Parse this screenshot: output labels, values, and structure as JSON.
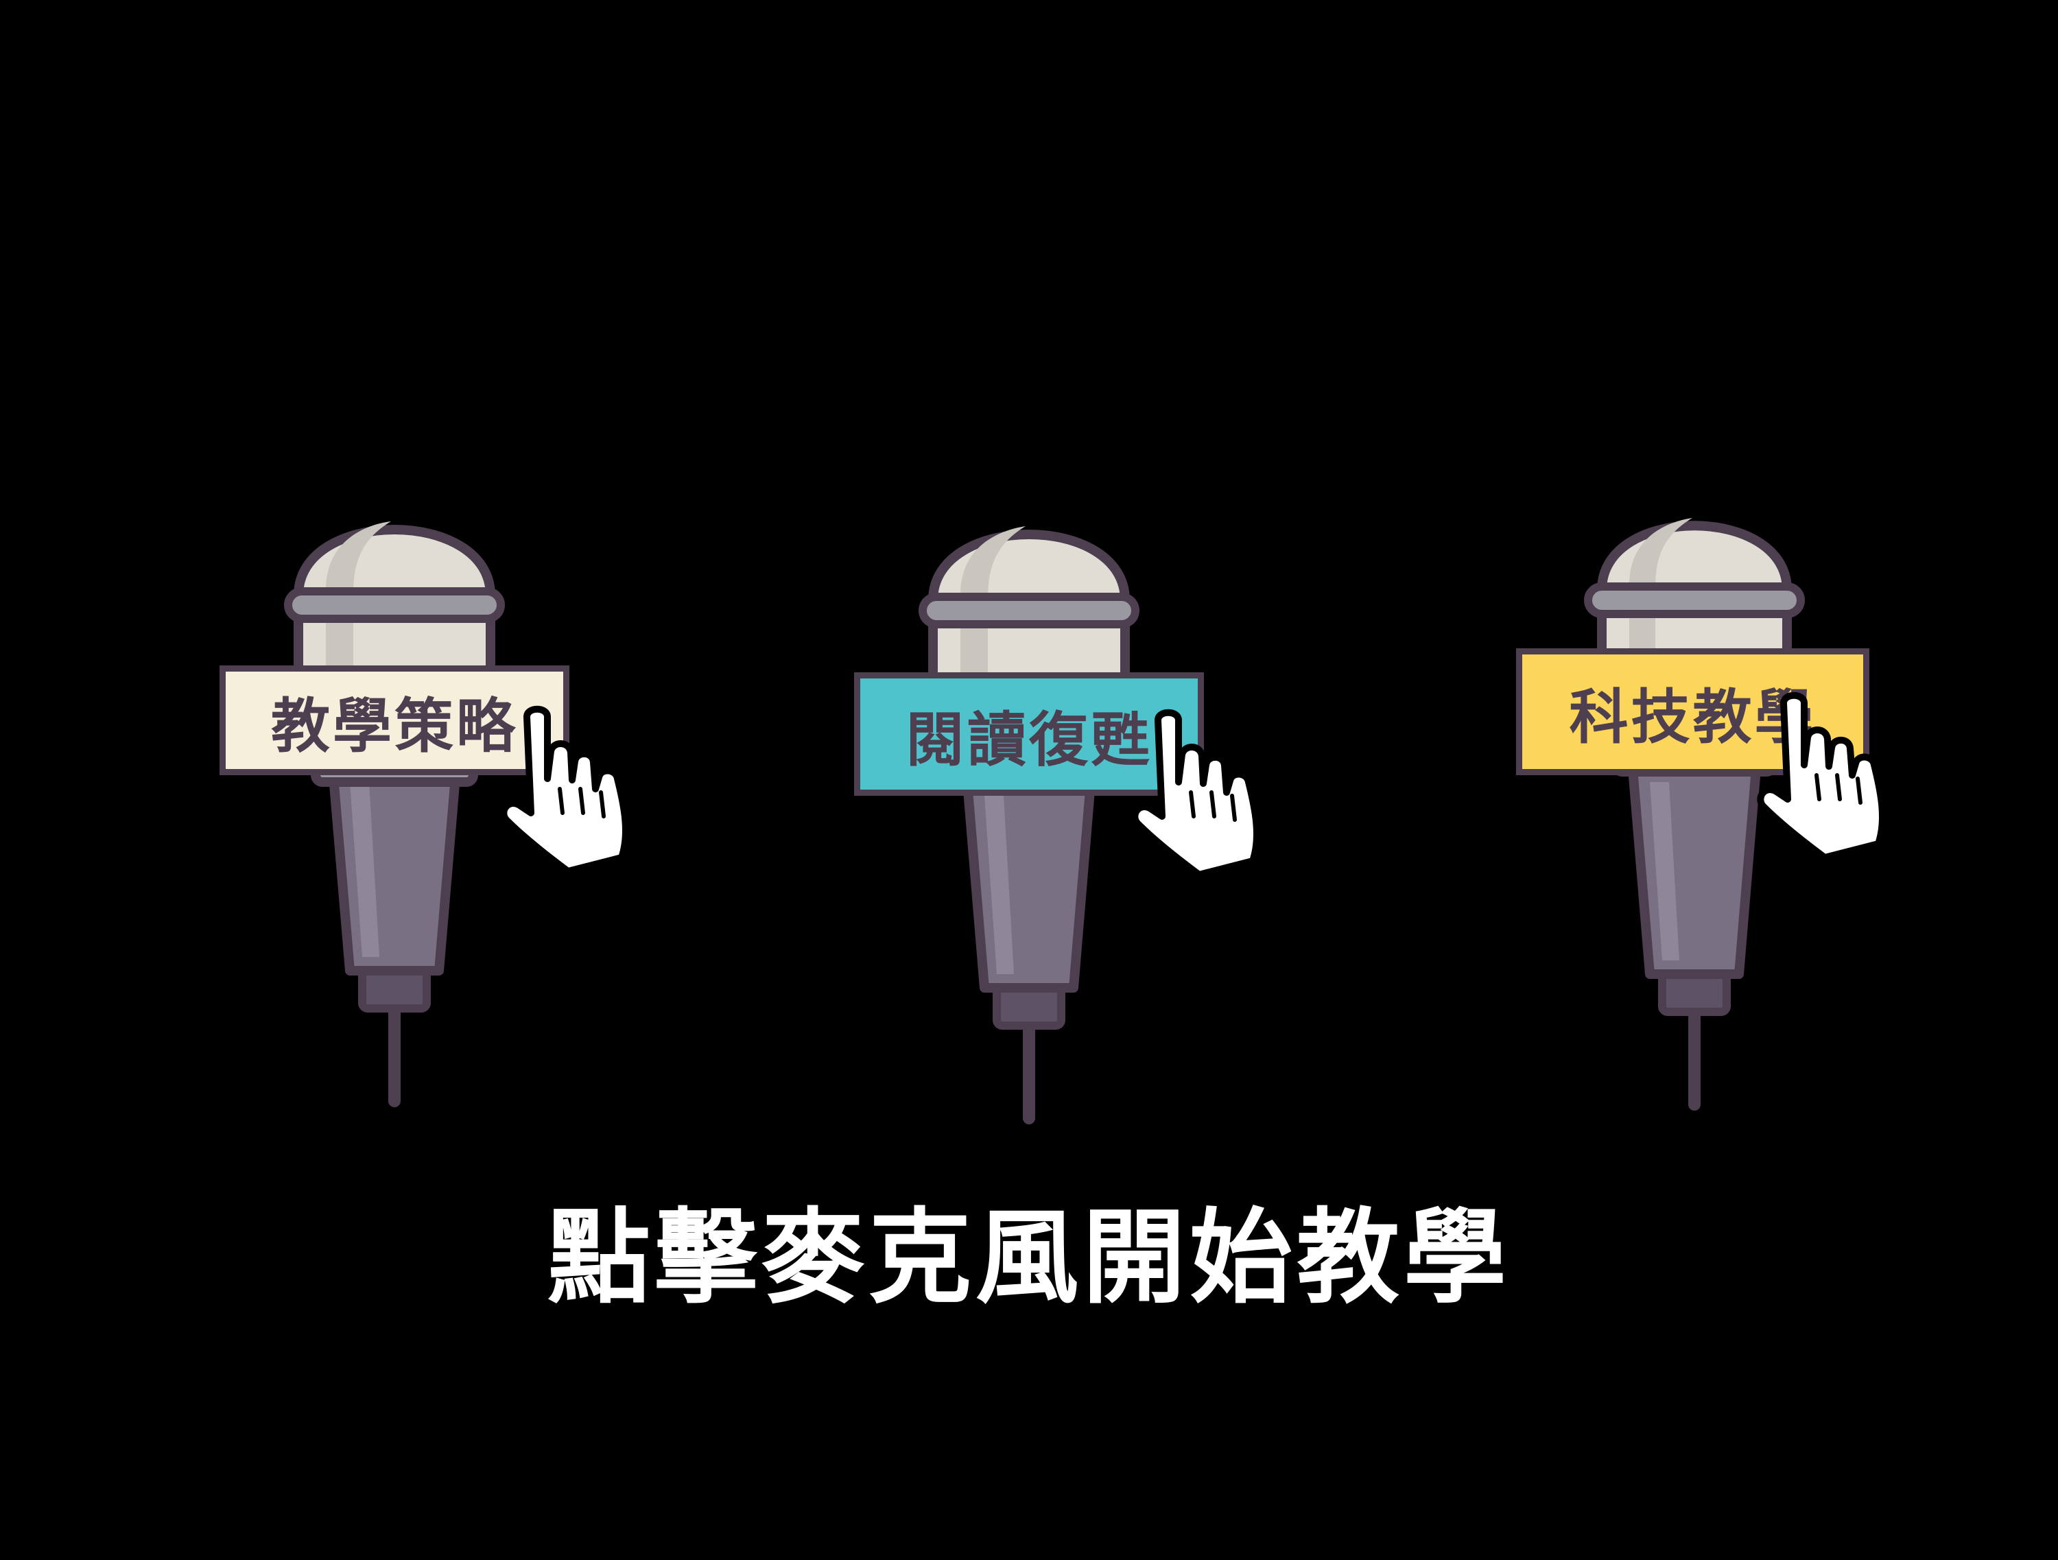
{
  "microphones": [
    {
      "label": "教學策略",
      "color": "#f6efdc",
      "icon": "microphone-icon"
    },
    {
      "label": "閱讀復甦",
      "color": "#4ec3cb",
      "icon": "microphone-icon"
    },
    {
      "label": "科技教學",
      "color": "#fcd65a",
      "icon": "microphone-icon"
    }
  ],
  "pointer_icon": "hand-pointer-icon",
  "instruction": "點擊麥克風開始教學",
  "colors": {
    "background": "#000000",
    "outline": "#4d3f4f",
    "mic_head": "#e0ddd5",
    "mic_handle": "#7a7083",
    "text": "#ffffff"
  }
}
